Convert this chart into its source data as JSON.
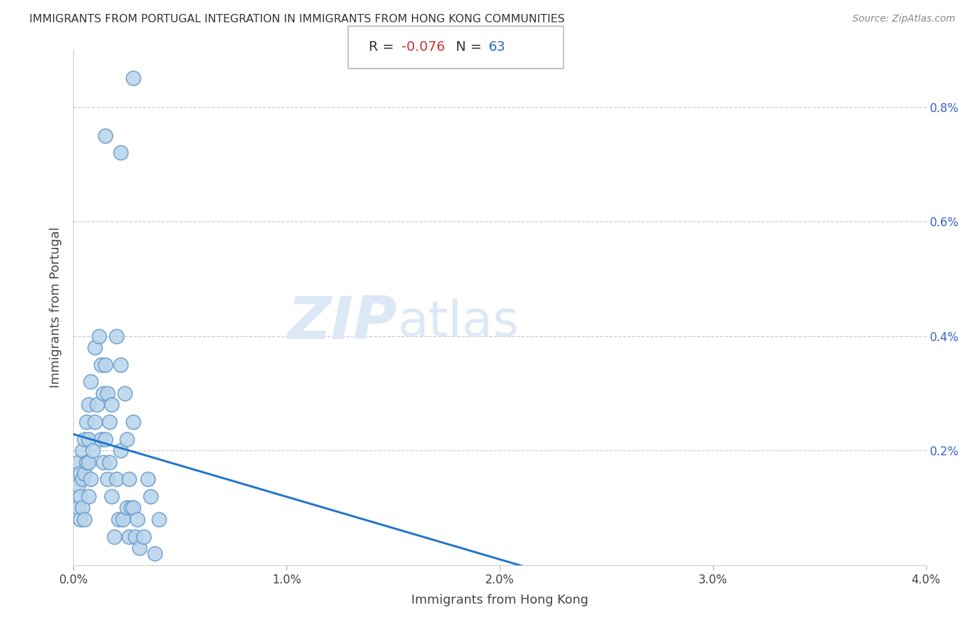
{
  "title": "IMMIGRANTS FROM PORTUGAL INTEGRATION IN IMMIGRANTS FROM HONG KONG COMMUNITIES",
  "source": "Source: ZipAtlas.com",
  "xlabel": "Immigrants from Hong Kong",
  "ylabel": "Immigrants from Portugal",
  "R_val": "-0.076",
  "N_val": "63",
  "xlim": [
    0.0,
    0.04
  ],
  "ylim": [
    0.0,
    0.009
  ],
  "xticks": [
    0.0,
    0.01,
    0.02,
    0.03,
    0.04
  ],
  "xtick_labels": [
    "0.0%",
    "1.0%",
    "2.0%",
    "3.0%",
    "4.0%"
  ],
  "yticks": [
    0.002,
    0.004,
    0.006,
    0.008
  ],
  "ytick_labels": [
    "0.2%",
    "0.4%",
    "0.6%",
    "0.8%"
  ],
  "scatter_face_color": "#b8d4ea",
  "scatter_edge_color": "#6699cc",
  "line_color": "#2277cc",
  "bg_color": "#ffffff",
  "grid_color": "#cccccc",
  "watermark_zip": "ZIP",
  "watermark_atlas": "atlas",
  "watermark_color": "#dce8f5",
  "R_label_color": "#cc3333",
  "N_label_color": "#3366cc",
  "axis_label_color": "#444444",
  "tick_label_color": "#444444",
  "right_tick_color": "#3366cc",
  "title_color": "#333333",
  "source_color": "#888888",
  "points_x": [
    0.0002,
    0.0002,
    0.0002,
    0.0003,
    0.0003,
    0.0003,
    0.0004,
    0.0004,
    0.0004,
    0.0005,
    0.0005,
    0.0005,
    0.0006,
    0.0006,
    0.0007,
    0.0007,
    0.0007,
    0.0007,
    0.0008,
    0.0008,
    0.0009,
    0.001,
    0.001,
    0.0011,
    0.0012,
    0.0013,
    0.0013,
    0.0014,
    0.0014,
    0.0015,
    0.0015,
    0.0016,
    0.0016,
    0.0017,
    0.0017,
    0.0018,
    0.0018,
    0.0019,
    0.002,
    0.002,
    0.0021,
    0.0022,
    0.0022,
    0.0023,
    0.0024,
    0.0025,
    0.0025,
    0.0026,
    0.0026,
    0.0027,
    0.0028,
    0.0028,
    0.0029,
    0.003,
    0.0031,
    0.0015,
    0.0022,
    0.0028,
    0.0033,
    0.0035,
    0.0036,
    0.0038,
    0.004
  ],
  "points_y": [
    0.0018,
    0.0014,
    0.001,
    0.0016,
    0.0012,
    0.0008,
    0.002,
    0.0015,
    0.001,
    0.0022,
    0.0016,
    0.0008,
    0.0025,
    0.0018,
    0.0028,
    0.0022,
    0.0018,
    0.0012,
    0.0032,
    0.0015,
    0.002,
    0.0038,
    0.0025,
    0.0028,
    0.004,
    0.0035,
    0.0022,
    0.003,
    0.0018,
    0.0035,
    0.0022,
    0.003,
    0.0015,
    0.0025,
    0.0018,
    0.0028,
    0.0012,
    0.0005,
    0.004,
    0.0015,
    0.0008,
    0.0035,
    0.002,
    0.0008,
    0.003,
    0.0022,
    0.001,
    0.0015,
    0.0005,
    0.001,
    0.0025,
    0.001,
    0.0005,
    0.0008,
    0.0003,
    0.0075,
    0.0072,
    0.0085,
    0.0005,
    0.0015,
    0.0012,
    0.0002,
    0.0008
  ]
}
